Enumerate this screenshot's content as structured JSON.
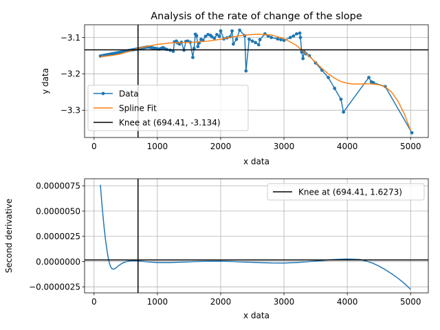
{
  "chart_data": [
    {
      "type": "line",
      "title": "Analysis of the rate of change of the slope",
      "xlabel": "x data",
      "ylabel": "y data",
      "xlim": [
        -150,
        5280
      ],
      "ylim": [
        -3.375,
        -3.065
      ],
      "xticks": [
        0,
        1000,
        2000,
        3000,
        4000,
        5000
      ],
      "xtick_labels": [
        "0",
        "1000",
        "2000",
        "3000",
        "4000",
        "5000"
      ],
      "yticks": [
        -3.1,
        -3.2,
        -3.3
      ],
      "ytick_labels": [
        "−3.1",
        "−3.2",
        "−3.3"
      ],
      "grid": true,
      "legend_position": "lower-left",
      "series": [
        {
          "name": "Data",
          "style": "line-with-markers",
          "color": "#1f77b4",
          "x": [
            100,
            130,
            160,
            190,
            220,
            250,
            280,
            310,
            340,
            370,
            400,
            430,
            460,
            490,
            520,
            550,
            580,
            610,
            640,
            670,
            700,
            730,
            760,
            790,
            820,
            850,
            880,
            910,
            940,
            970,
            1000,
            1030,
            1060,
            1090,
            1120,
            1150,
            1200,
            1250,
            1270,
            1300,
            1320,
            1350,
            1380,
            1420,
            1450,
            1480,
            1520,
            1560,
            1580,
            1600,
            1620,
            1640,
            1660,
            1690,
            1720,
            1760,
            1800,
            1840,
            1860,
            1900,
            1940,
            1980,
            2000,
            2050,
            2100,
            2150,
            2180,
            2200,
            2250,
            2300,
            2380,
            2400,
            2450,
            2500,
            2550,
            2600,
            2620,
            2700,
            2750,
            2800,
            2900,
            2950,
            3000,
            3100,
            3150,
            3200,
            3250,
            3260,
            3280,
            3300,
            3320,
            3350,
            3400,
            3500,
            3600,
            3700,
            3800,
            3900,
            3940,
            4340,
            4380,
            4410,
            4600,
            5020
          ],
          "y": [
            -3.151,
            -3.15,
            -3.149,
            -3.148,
            -3.147,
            -3.146,
            -3.145,
            -3.144,
            -3.143,
            -3.142,
            -3.141,
            -3.14,
            -3.139,
            -3.138,
            -3.137,
            -3.136,
            -3.135,
            -3.134,
            -3.133,
            -3.132,
            -3.131,
            -3.13,
            -3.129,
            -3.128,
            -3.127,
            -3.126,
            -3.127,
            -3.128,
            -3.129,
            -3.13,
            -3.131,
            -3.132,
            -3.13,
            -3.128,
            -3.131,
            -3.133,
            -3.135,
            -3.138,
            -3.112,
            -3.11,
            -3.115,
            -3.118,
            -3.113,
            -3.135,
            -3.111,
            -3.11,
            -3.113,
            -3.155,
            -3.13,
            -3.091,
            -3.095,
            -3.125,
            -3.115,
            -3.105,
            -3.108,
            -3.097,
            -3.092,
            -3.094,
            -3.098,
            -3.102,
            -3.092,
            -3.097,
            -3.082,
            -3.104,
            -3.101,
            -3.098,
            -3.082,
            -3.118,
            -3.105,
            -3.08,
            -3.095,
            -3.192,
            -3.105,
            -3.11,
            -3.114,
            -3.12,
            -3.106,
            -3.09,
            -3.096,
            -3.1,
            -3.104,
            -3.106,
            -3.108,
            -3.1,
            -3.096,
            -3.09,
            -3.088,
            -3.1,
            -3.14,
            -3.158,
            -3.14,
            -3.145,
            -3.15,
            -3.17,
            -3.19,
            -3.21,
            -3.24,
            -3.27,
            -3.305,
            -3.21,
            -3.222,
            -3.224,
            -3.235,
            -3.362
          ]
        },
        {
          "name": "Spline Fit",
          "style": "line",
          "color": "#ff7f0e",
          "x": [
            100,
            200,
            300,
            400,
            500,
            600,
            700,
            800,
            1000,
            1200,
            1400,
            1600,
            1800,
            2000,
            2200,
            2400,
            2600,
            2800,
            3000,
            3200,
            3300,
            3400,
            3500,
            3600,
            3700,
            3800,
            3900,
            4000,
            4100,
            4200,
            4300,
            4400,
            4500,
            4600,
            4700,
            4800,
            4900,
            5000
          ],
          "y": [
            -3.153,
            -3.151,
            -3.149,
            -3.146,
            -3.141,
            -3.136,
            -3.13,
            -3.126,
            -3.119,
            -3.115,
            -3.114,
            -3.113,
            -3.11,
            -3.105,
            -3.098,
            -3.093,
            -3.091,
            -3.093,
            -3.103,
            -3.122,
            -3.137,
            -3.152,
            -3.168,
            -3.185,
            -3.2,
            -3.212,
            -3.221,
            -3.226,
            -3.228,
            -3.228,
            -3.227,
            -3.228,
            -3.23,
            -3.236,
            -3.25,
            -3.275,
            -3.31,
            -3.355
          ]
        }
      ],
      "reference_lines": [
        {
          "orientation": "vertical",
          "value": 694.41,
          "color": "#000000"
        },
        {
          "orientation": "horizontal",
          "value": -3.134,
          "color": "#000000"
        }
      ],
      "legend": [
        {
          "label": "Data",
          "color": "#1f77b4",
          "marker": true
        },
        {
          "label": "Spline Fit",
          "color": "#ff7f0e",
          "marker": false
        },
        {
          "label": "Knee at (694.41, -3.134)",
          "color": "#000000",
          "marker": false
        }
      ]
    },
    {
      "type": "line",
      "title": "",
      "xlabel": "x data",
      "ylabel": "Second derivative",
      "xlim": [
        -150,
        5280
      ],
      "ylim": [
        -3.1e-06,
        8.2e-06
      ],
      "xticks": [
        0,
        1000,
        2000,
        3000,
        4000,
        5000
      ],
      "xtick_labels": [
        "0",
        "1000",
        "2000",
        "3000",
        "4000",
        "5000"
      ],
      "yticks": [
        7.5e-06,
        5e-06,
        2.5e-06,
        0,
        -2.5e-06
      ],
      "ytick_labels": [
        "0.0000075",
        "0.0000050",
        "0.0000025",
        "0.0000000",
        "−0.0000025"
      ],
      "grid": true,
      "legend_position": "upper-right",
      "series": [
        {
          "name": "",
          "style": "line",
          "color": "#1f77b4",
          "x": [
            100,
            120,
            140,
            160,
            180,
            200,
            220,
            240,
            260,
            280,
            300,
            330,
            360,
            400,
            450,
            500,
            550,
            600,
            650,
            700,
            800,
            900,
            1000,
            1200,
            1400,
            1600,
            1800,
            2000,
            2200,
            2400,
            2600,
            2800,
            3000,
            3200,
            3400,
            3600,
            3800,
            4000,
            4200,
            4300,
            4400,
            4500,
            4600,
            4700,
            4800,
            4900,
            5000
          ],
          "y": [
            7.6e-06,
            6e-06,
            4.6e-06,
            3.3e-06,
            2.2e-06,
            1.3e-06,
            5e-07,
            -1e-07,
            -5e-07,
            -7e-07,
            -7.5e-07,
            -7e-07,
            -5.5e-07,
            -3.5e-07,
            -1.5e-07,
            -2e-08,
            5e-08,
            8e-08,
            8e-08,
            6e-08,
            0.0,
            -5e-08,
            -1e-07,
            -1e-07,
            -5e-08,
            0.0,
            2e-08,
            3e-08,
            0.0,
            -5e-08,
            -1e-07,
            -1.4e-07,
            -1.5e-07,
            -1e-07,
            0.0,
            1e-07,
            2e-07,
            2.5e-07,
            2e-07,
            5e-08,
            -1.5e-07,
            -4.5e-07,
            -8e-07,
            -1.2e-06,
            -1.65e-06,
            -2.15e-06,
            -2.75e-06
          ]
        }
      ],
      "reference_lines": [
        {
          "orientation": "vertical",
          "value": 694.41,
          "color": "#000000"
        },
        {
          "orientation": "horizontal",
          "value": 1.6273e-07,
          "color": "#000000"
        }
      ],
      "legend": [
        {
          "label": "Knee at (694.41, 1.6273)",
          "color": "#000000",
          "marker": false
        }
      ]
    }
  ]
}
